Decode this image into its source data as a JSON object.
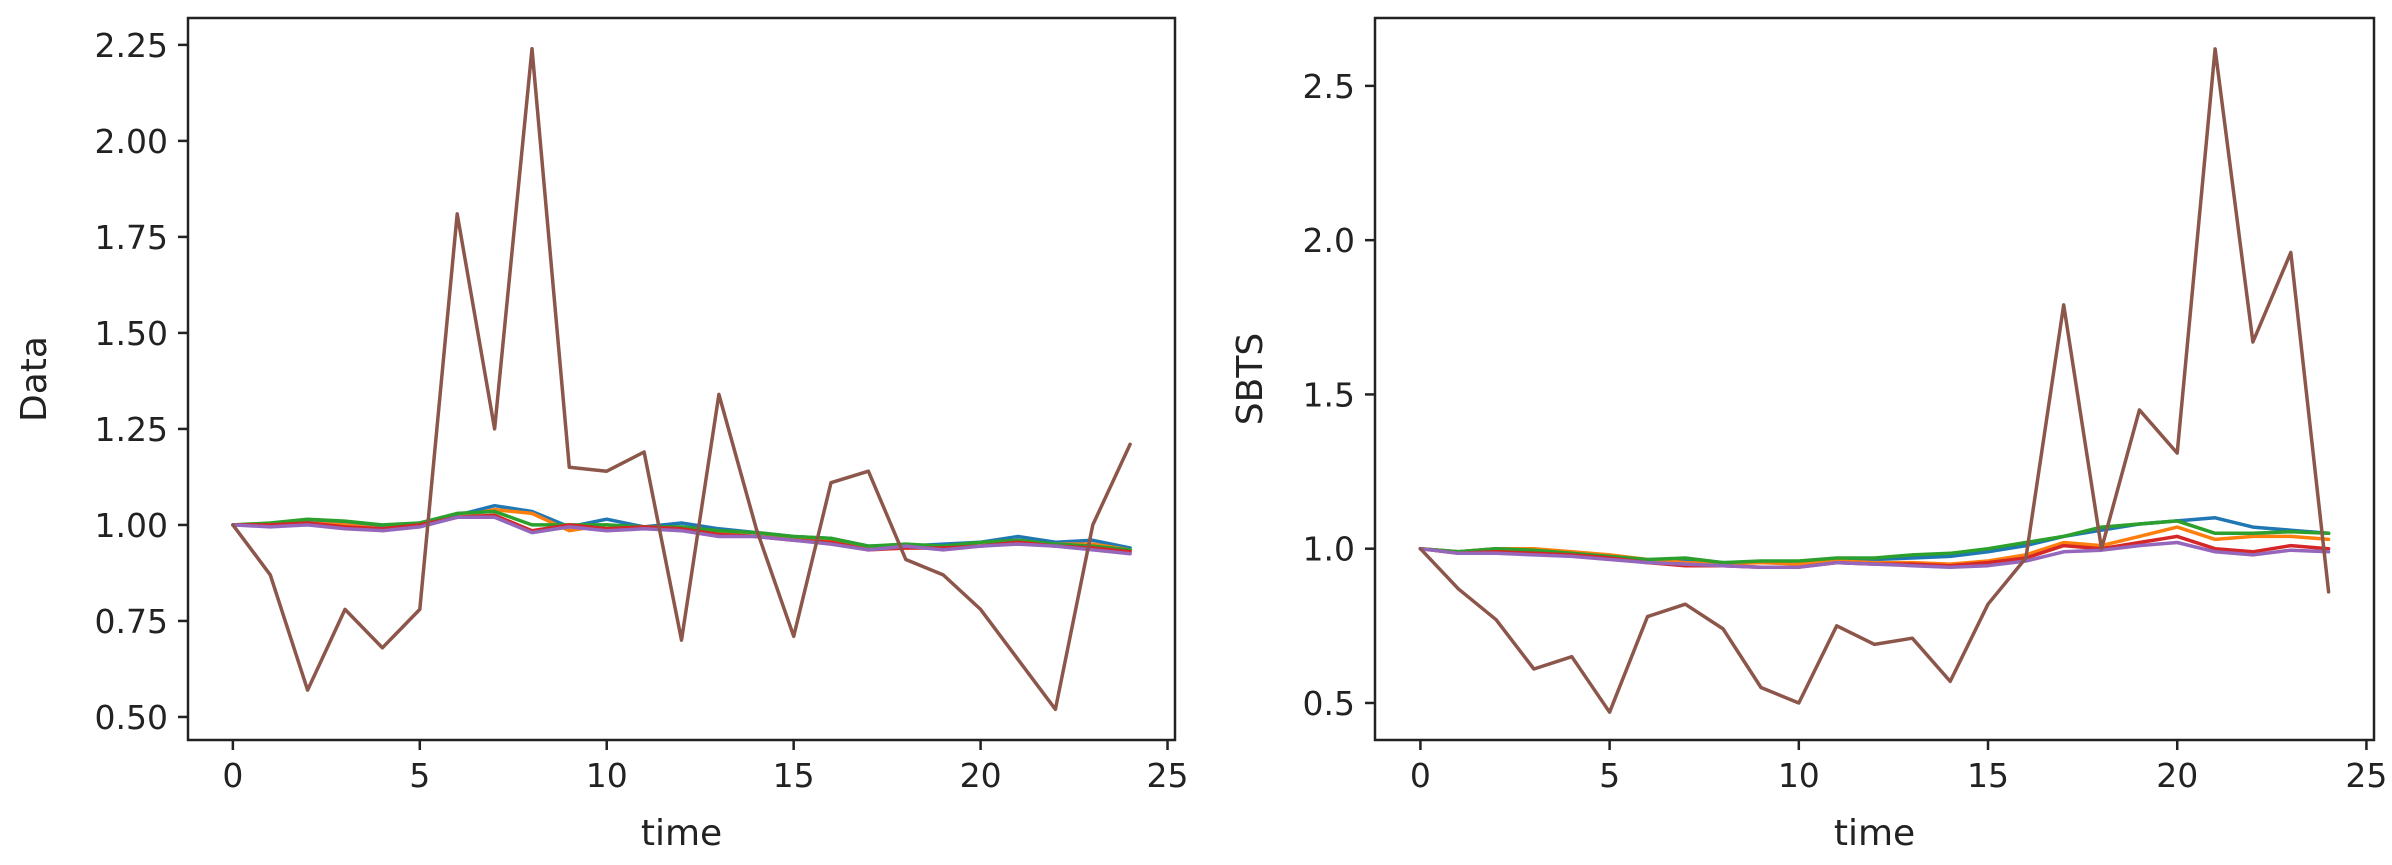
{
  "chart_data": [
    {
      "type": "line",
      "xlabel": "time",
      "ylabel": "Data",
      "xlim": [
        -1.2,
        25.2
      ],
      "ylim": [
        0.44,
        2.32
      ],
      "xticks": [
        0,
        5,
        10,
        15,
        20,
        25
      ],
      "yticks": [
        0.5,
        0.75,
        1.0,
        1.25,
        1.5,
        1.75,
        2.0,
        2.25
      ],
      "ytick_labels": [
        "0.50",
        "0.75",
        "1.00",
        "1.25",
        "1.50",
        "1.75",
        "2.00",
        "2.25"
      ],
      "grid": false,
      "x": [
        0,
        1,
        2,
        3,
        4,
        5,
        6,
        7,
        8,
        9,
        10,
        11,
        12,
        13,
        14,
        15,
        16,
        17,
        18,
        19,
        20,
        21,
        22,
        23,
        24
      ],
      "series": [
        {
          "color": "#1f77b4",
          "values": [
            1.0,
            1.0,
            1.01,
            1.005,
            0.995,
            1.005,
            1.025,
            1.05,
            1.035,
            0.995,
            1.015,
            0.995,
            1.005,
            0.99,
            0.98,
            0.97,
            0.965,
            0.945,
            0.945,
            0.95,
            0.955,
            0.97,
            0.955,
            0.96,
            0.94
          ]
        },
        {
          "color": "#ff7f0e",
          "values": [
            1.0,
            1.0,
            1.005,
            1.0,
            0.99,
            1.0,
            1.02,
            1.04,
            1.03,
            0.985,
            1.0,
            0.99,
            0.99,
            0.98,
            0.97,
            0.965,
            0.96,
            0.94,
            0.94,
            0.94,
            0.95,
            0.955,
            0.95,
            0.95,
            0.935
          ]
        },
        {
          "color": "#2ca02c",
          "values": [
            1.0,
            1.005,
            1.015,
            1.01,
            1.0,
            1.005,
            1.03,
            1.035,
            1.0,
            1.0,
            1.0,
            0.995,
            0.995,
            0.985,
            0.98,
            0.97,
            0.965,
            0.945,
            0.95,
            0.945,
            0.955,
            0.96,
            0.95,
            0.945,
            0.935
          ]
        },
        {
          "color": "#d62728",
          "values": [
            1.0,
            1.0,
            1.005,
            0.995,
            0.99,
            1.0,
            1.02,
            1.025,
            0.985,
            1.0,
            0.99,
            0.995,
            0.99,
            0.975,
            0.97,
            0.96,
            0.955,
            0.935,
            0.94,
            0.94,
            0.945,
            0.955,
            0.945,
            0.94,
            0.93
          ]
        },
        {
          "color": "#9467bd",
          "values": [
            1.0,
            0.995,
            1.0,
            0.99,
            0.985,
            0.995,
            1.02,
            1.02,
            0.98,
            0.995,
            0.985,
            0.99,
            0.985,
            0.97,
            0.97,
            0.96,
            0.95,
            0.935,
            0.945,
            0.935,
            0.945,
            0.95,
            0.945,
            0.935,
            0.925
          ]
        },
        {
          "color": "#8c564b",
          "values": [
            1.0,
            0.87,
            0.57,
            0.78,
            0.68,
            0.78,
            1.81,
            1.25,
            2.24,
            1.15,
            1.14,
            1.19,
            0.7,
            1.34,
            0.99,
            0.71,
            1.11,
            1.14,
            0.91,
            0.87,
            0.78,
            0.65,
            0.52,
            1.0,
            1.21
          ]
        }
      ]
    },
    {
      "type": "line",
      "xlabel": "time",
      "ylabel": "SBTS",
      "xlim": [
        -1.2,
        25.2
      ],
      "ylim": [
        0.38,
        2.72
      ],
      "xticks": [
        0,
        5,
        10,
        15,
        20,
        25
      ],
      "yticks": [
        0.5,
        1.0,
        1.5,
        2.0,
        2.5
      ],
      "ytick_labels": [
        "0.5",
        "1.0",
        "1.5",
        "2.0",
        "2.5"
      ],
      "grid": false,
      "x": [
        0,
        1,
        2,
        3,
        4,
        5,
        6,
        7,
        8,
        9,
        10,
        11,
        12,
        13,
        14,
        15,
        16,
        17,
        18,
        19,
        20,
        21,
        22,
        23,
        24
      ],
      "series": [
        {
          "color": "#1f77b4",
          "values": [
            1.0,
            0.99,
            1.0,
            0.995,
            0.985,
            0.975,
            0.96,
            0.965,
            0.955,
            0.955,
            0.955,
            0.965,
            0.965,
            0.97,
            0.975,
            0.99,
            1.01,
            1.04,
            1.06,
            1.08,
            1.09,
            1.1,
            1.07,
            1.06,
            1.05
          ]
        },
        {
          "color": "#ff7f0e",
          "values": [
            1.0,
            0.99,
            1.0,
            1.0,
            0.99,
            0.98,
            0.965,
            0.955,
            0.95,
            0.955,
            0.95,
            0.96,
            0.955,
            0.955,
            0.95,
            0.96,
            0.98,
            1.02,
            1.01,
            1.04,
            1.07,
            1.03,
            1.04,
            1.04,
            1.03
          ]
        },
        {
          "color": "#2ca02c",
          "values": [
            1.0,
            0.99,
            1.0,
            0.995,
            0.985,
            0.975,
            0.965,
            0.97,
            0.955,
            0.96,
            0.96,
            0.97,
            0.97,
            0.98,
            0.985,
            1.0,
            1.02,
            1.04,
            1.07,
            1.08,
            1.09,
            1.05,
            1.05,
            1.055,
            1.05
          ]
        },
        {
          "color": "#d62728",
          "values": [
            1.0,
            0.985,
            0.99,
            0.985,
            0.98,
            0.97,
            0.955,
            0.945,
            0.945,
            0.94,
            0.94,
            0.955,
            0.95,
            0.95,
            0.945,
            0.955,
            0.97,
            1.01,
            1.0,
            1.02,
            1.04,
            1.0,
            0.99,
            1.01,
            1.0
          ]
        },
        {
          "color": "#9467bd",
          "values": [
            1.0,
            0.985,
            0.985,
            0.98,
            0.975,
            0.965,
            0.955,
            0.95,
            0.945,
            0.94,
            0.94,
            0.955,
            0.95,
            0.945,
            0.94,
            0.945,
            0.96,
            0.99,
            0.995,
            1.01,
            1.02,
            0.99,
            0.98,
            0.995,
            0.99
          ]
        },
        {
          "color": "#8c564b",
          "values": [
            1.0,
            0.87,
            0.77,
            0.61,
            0.65,
            0.47,
            0.78,
            0.82,
            0.74,
            0.55,
            0.5,
            0.75,
            0.69,
            0.71,
            0.57,
            0.82,
            0.97,
            1.79,
            1.0,
            1.45,
            1.31,
            2.62,
            1.67,
            1.96,
            0.86
          ]
        }
      ]
    }
  ]
}
